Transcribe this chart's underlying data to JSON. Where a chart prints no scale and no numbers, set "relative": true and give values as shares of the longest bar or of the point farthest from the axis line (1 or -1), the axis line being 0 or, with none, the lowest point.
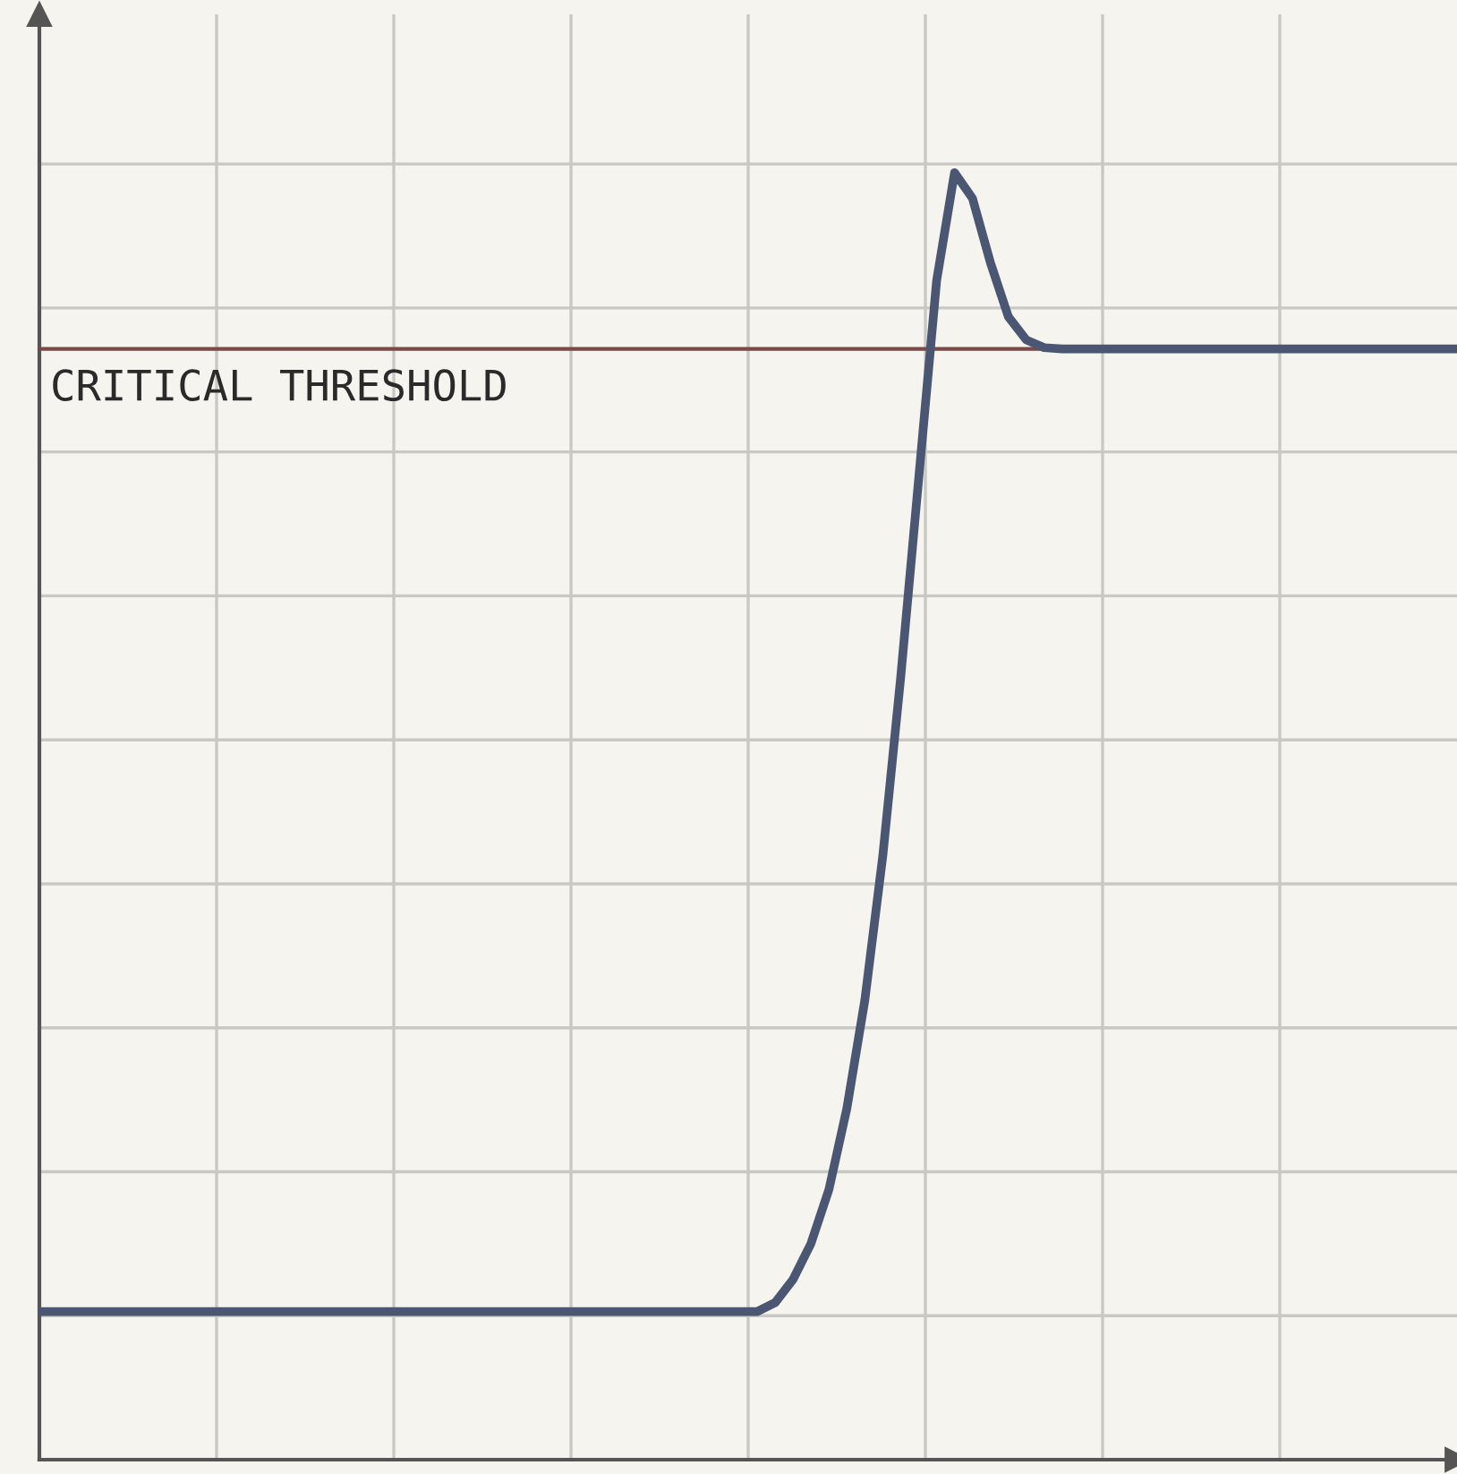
{
  "chart_data": {
    "type": "line",
    "relative": true,
    "grid": true,
    "legend": false,
    "marker": "none",
    "line_style": "solid",
    "categories": [
      null,
      null,
      null,
      null,
      null,
      null,
      null,
      null,
      null,
      null,
      null,
      null,
      null,
      null,
      null,
      null,
      null,
      null,
      null,
      null,
      null,
      null,
      null,
      null,
      null,
      null,
      null,
      null,
      null,
      null,
      null,
      null,
      null,
      null,
      null,
      null,
      null,
      null,
      null,
      null,
      null,
      null,
      null,
      null,
      null,
      null,
      null,
      null,
      null,
      null,
      null,
      null,
      null,
      null,
      null,
      null,
      null,
      null,
      null,
      null,
      null,
      null,
      null,
      null,
      null,
      null,
      null,
      null,
      null,
      null,
      null,
      null,
      null,
      null,
      null,
      null,
      null,
      null,
      null,
      null
    ],
    "series": [
      {
        "color": "#4b5673",
        "values": [
          0.115,
          0.115,
          0.115,
          0.115,
          0.115,
          0.115,
          0.115,
          0.115,
          0.115,
          0.115,
          0.115,
          0.115,
          0.115,
          0.115,
          0.115,
          0.115,
          0.115,
          0.115,
          0.115,
          0.115,
          0.115,
          0.115,
          0.115,
          0.115,
          0.115,
          0.115,
          0.115,
          0.115,
          0.115,
          0.115,
          0.115,
          0.115,
          0.115,
          0.115,
          0.115,
          0.115,
          0.115,
          0.115,
          0.115,
          0.115,
          0.115,
          0.122,
          0.14,
          0.168,
          0.21,
          0.273,
          0.357,
          0.469,
          0.608,
          0.762,
          0.916,
          1.0,
          0.98,
          0.93,
          0.888,
          0.87,
          0.864,
          0.863,
          0.863,
          0.863,
          0.863,
          0.863,
          0.863,
          0.863,
          0.863,
          0.863,
          0.863,
          0.863,
          0.863,
          0.863,
          0.863,
          0.863,
          0.863,
          0.863,
          0.863,
          0.863,
          0.863,
          0.863,
          0.863,
          0.863
        ]
      }
    ],
    "ref_lines": [
      {
        "axis": "y",
        "value": 0.863,
        "label": "CRITICAL THRESHOLD",
        "color": "#7a4a4a"
      }
    ]
  }
}
